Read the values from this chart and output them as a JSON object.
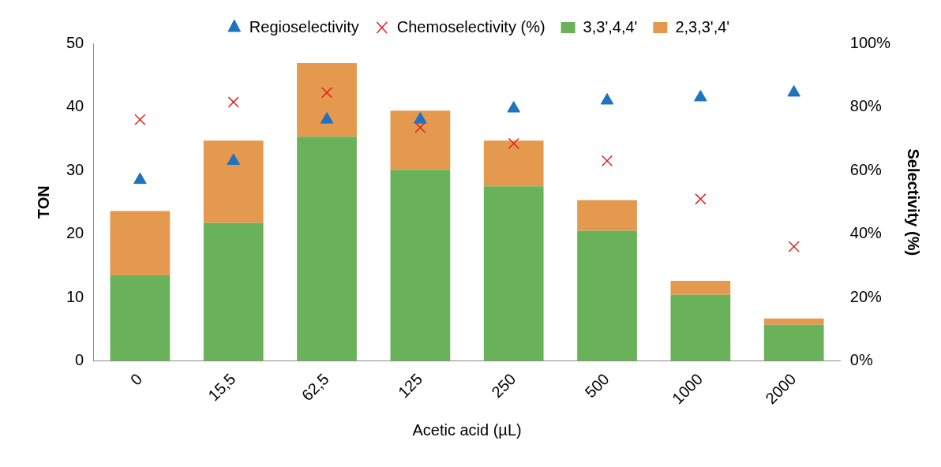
{
  "chart_data": {
    "type": "bar",
    "stacked": true,
    "xlabel": "Acetic acid (µL)",
    "ylabel": "TON",
    "y2label": "Selectivity (%)",
    "categories": [
      "0",
      "15,5",
      "62,5",
      "125",
      "250",
      "500",
      "1000",
      "2000"
    ],
    "series": [
      {
        "name": "3,3',4,4'",
        "color": "#6ab25a",
        "values": [
          13.5,
          21.7,
          35.3,
          30.1,
          27.5,
          20.5,
          10.4,
          5.7
        ]
      },
      {
        "name": "2,3,3',4'",
        "color": "#e4994f",
        "values": [
          10.1,
          13.0,
          11.6,
          9.3,
          7.2,
          4.8,
          2.2,
          1.0
        ]
      },
      {
        "name": "Regioselectivity",
        "type": "scatter",
        "axis": "y2",
        "marker": "triangle",
        "color": "#1f74c0",
        "values": [
          57,
          63,
          76,
          76,
          79.5,
          82,
          83,
          84.5
        ]
      },
      {
        "name": "Chemoselectivity (%)",
        "type": "scatter",
        "axis": "y2",
        "marker": "cross",
        "color": "#e02020",
        "values": [
          76,
          81.5,
          84.5,
          73.5,
          68.5,
          63,
          51,
          36
        ]
      }
    ],
    "ylim": [
      0,
      50
    ],
    "yticks": [
      0,
      10,
      20,
      30,
      40,
      50
    ],
    "y2lim": [
      0,
      100
    ],
    "y2ticks": [
      {
        "value": 0,
        "label": "0%"
      },
      {
        "value": 20,
        "label": "20%"
      },
      {
        "value": 40,
        "label": "40%"
      },
      {
        "value": 60,
        "label": "60%"
      },
      {
        "value": 80,
        "label": "80%"
      },
      {
        "value": 100,
        "label": "100%"
      }
    ],
    "grid": false,
    "legend": "top"
  }
}
